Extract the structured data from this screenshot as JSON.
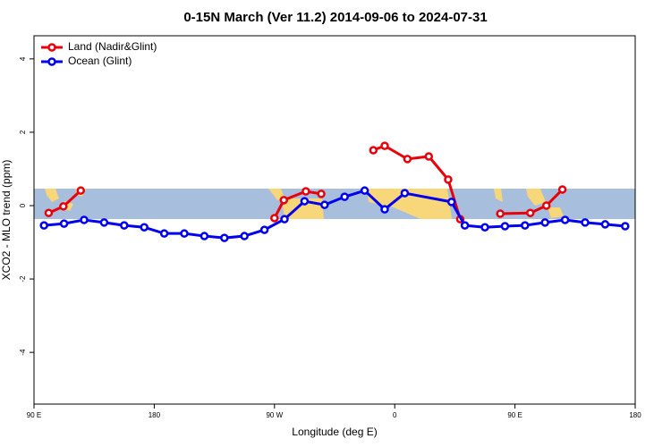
{
  "chart_data": {
    "type": "line",
    "title": "0-15N March (Ver 11.2)   2014-09-06 to 2024-07-31",
    "x_label": "Longitude (deg E)",
    "y_label": "XCO2 - MLO trend (ppm)",
    "xlim": [
      90,
      540
    ],
    "xticks": [
      {
        "value": 90,
        "label": "90 E"
      },
      180,
      {
        "value": 270,
        "label": "90 W"
      },
      {
        "value": 360,
        "label": "0"
      },
      {
        "value": 450,
        "label": "90 E"
      },
      {
        "value": 540,
        "label": "180"
      }
    ],
    "ylim": [
      -5.41,
      4.63
    ],
    "yticks": [
      -4,
      -2,
      0,
      2,
      4
    ],
    "legend": "top-left",
    "series": [
      {
        "name": "Land (Nadir&Glint)",
        "color": "#e8000b",
        "x": [
          101,
          112,
          125,
          200,
          270,
          277,
          293.5,
          305,
          320,
          344,
          352.5,
          369.5,
          385.5,
          400,
          409,
          425,
          439,
          461.5,
          473.5,
          485.5
        ],
        "values": [
          -0.2,
          -0.02,
          0.41,
          null,
          -0.34,
          0.15,
          0.39,
          0.32,
          null,
          1.51,
          1.63,
          1.27,
          1.34,
          0.71,
          -0.37,
          null,
          -0.22,
          -0.2,
          0.0,
          0.44
        ]
      },
      {
        "name": "Ocean (Glint)",
        "color": "#0000ee",
        "x": [
          97.5,
          112.5,
          127.5,
          142.5,
          157.5,
          172.5,
          187.5,
          202.5,
          217.5,
          232.5,
          247.5,
          262.5,
          277.5,
          292.5,
          307.5,
          322.5,
          337.5,
          352.5,
          367.5,
          402.5,
          412.5,
          427.5,
          442.5,
          457.5,
          472.5,
          487.5,
          502.5,
          517.5,
          532.5
        ],
        "values": [
          -0.54,
          -0.49,
          -0.39,
          -0.46,
          -0.54,
          -0.59,
          -0.76,
          -0.76,
          -0.83,
          -0.88,
          -0.83,
          -0.66,
          -0.37,
          0.12,
          0.02,
          0.24,
          0.41,
          -0.1,
          0.34,
          0.1,
          -0.54,
          -0.59,
          -0.56,
          -0.54,
          -0.46,
          -0.39,
          -0.46,
          -0.51,
          -0.56
        ]
      }
    ]
  }
}
